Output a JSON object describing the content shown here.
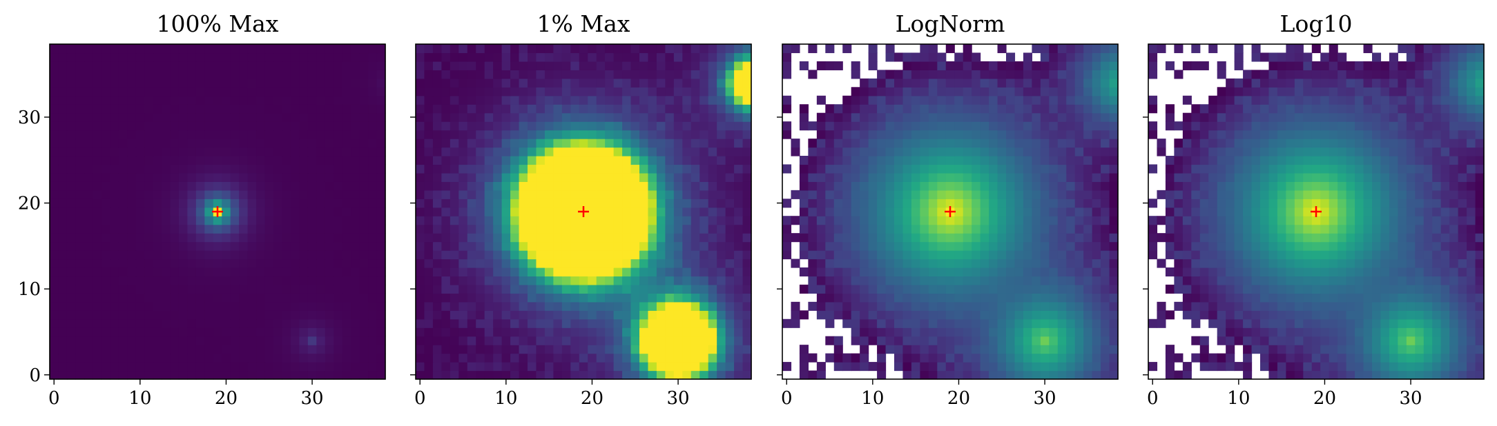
{
  "chart_data": {
    "type": "heatmap",
    "colormap": "viridis",
    "background": "#ffffff",
    "grid": false,
    "image_size": [
      39,
      39
    ],
    "x_ticks": [
      0,
      10,
      20,
      30
    ],
    "y_ticks": [
      0,
      10,
      20,
      30
    ],
    "y_tick_labels_shown_on": "first-panel-only",
    "xlim": [
      -0.5,
      38.5
    ],
    "ylim": [
      -0.5,
      38.5
    ],
    "origin": "lower",
    "sources": [
      {
        "x": 19,
        "y": 19,
        "peak": 1.0
      },
      {
        "x": 30,
        "y": 4,
        "peak": 0.15
      },
      {
        "x": 39,
        "y": 34,
        "peak": 0.05
      }
    ],
    "marker": {
      "symbol": "+",
      "color": "#ff0000",
      "x": 19,
      "y": 19
    },
    "panels": [
      {
        "title": "100% Max",
        "norm": "linear",
        "vmax_fraction": 1.0
      },
      {
        "title": "1% Max",
        "norm": "linear",
        "vmax_fraction": 0.01
      },
      {
        "title": "LogNorm",
        "norm": "lognorm"
      },
      {
        "title": "Log10",
        "norm": "log10"
      }
    ]
  }
}
